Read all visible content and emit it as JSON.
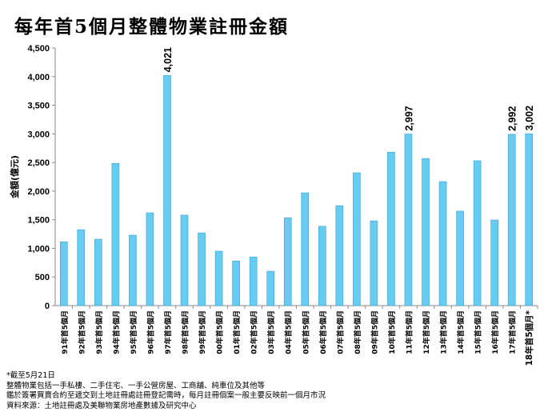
{
  "chart_data": {
    "type": "bar",
    "title": "每年首5個月整體物業註冊金額",
    "ylabel": "金額(億元)",
    "xlabel": "",
    "ylim": [
      0,
      4500
    ],
    "yticks": [
      "0",
      "500",
      "1,000",
      "1,500",
      "2,000",
      "2,500",
      "3,000",
      "3,500",
      "4,000",
      "4,500"
    ],
    "grid": false,
    "bar_color": "#66ccf2",
    "categories": [
      "91年首5個月",
      "92年首5個月",
      "93年首5個月",
      "94年首5個月",
      "95年首5個月",
      "96年首5個月",
      "97年首5個月",
      "98年首5個月",
      "99年首5個月",
      "00年首5個月",
      "01年首5個月",
      "02年首5個月",
      "03年首5個月",
      "04年首5個月",
      "05年首5個月",
      "06年首5個月",
      "07年首5個月",
      "08年首5個月",
      "09年首5個月",
      "10年首5個月",
      "11年首5個月",
      "12年首5個月",
      "13年首5個月",
      "14年首5個月",
      "15年首5個月",
      "16年首5個月",
      "17年首5個月",
      "18年首5個月*"
    ],
    "values": [
      1115,
      1325,
      1160,
      2485,
      1230,
      1620,
      4021,
      1580,
      1270,
      950,
      780,
      850,
      600,
      1535,
      1970,
      1385,
      1745,
      2320,
      1480,
      2680,
      2997,
      2570,
      2165,
      1650,
      2530,
      1495,
      2992,
      3002
    ],
    "data_labels": {
      "6": "4,021",
      "20": "2,997",
      "26": "2,992",
      "27": "3,002"
    }
  },
  "notes": [
    "*截至5月21日",
    "整體物業包括一手私樓、二手住宅、一手公營房屋、工商舖、純車位及其他等",
    "鑑於簽署買賣合約至遞交到土地註冊處註冊登記需時，每月註冊個案一般主要反映前一個月市況",
    "資料來源：土地註冊處及美聯物業房地產數據及研究中心"
  ]
}
